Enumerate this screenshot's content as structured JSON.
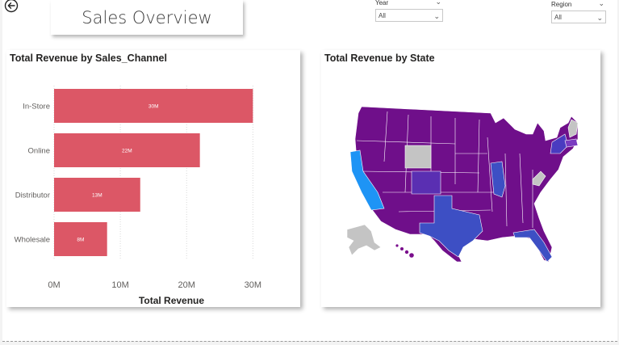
{
  "header": {
    "title": "Sales Overview"
  },
  "slicers": [
    {
      "label": "Year",
      "value": "All"
    },
    {
      "label": "Region",
      "value": "All"
    }
  ],
  "bar_panel": {
    "title": "Total Revenue by Sales_Channel"
  },
  "map_panel": {
    "title": "Total Revenue by State"
  },
  "colors": {
    "bar": "#dc5766",
    "map_low": "#7a0e8c",
    "map_mid": "#3d4fc4",
    "map_high": "#1e94f5",
    "map_nodata": "#c4c4c4"
  },
  "chart_data": {
    "type": "bar",
    "orientation": "horizontal",
    "categories": [
      "In-Store",
      "Online",
      "Distributor",
      "Wholesale"
    ],
    "values": [
      30,
      22,
      13,
      8
    ],
    "data_labels": [
      "30M",
      "22M",
      "13M",
      "8M"
    ],
    "x_ticks": [
      "0M",
      "10M",
      "20M",
      "30M"
    ],
    "xlabel": "Total Revenue",
    "xlim": [
      0,
      33
    ],
    "grid": true
  }
}
